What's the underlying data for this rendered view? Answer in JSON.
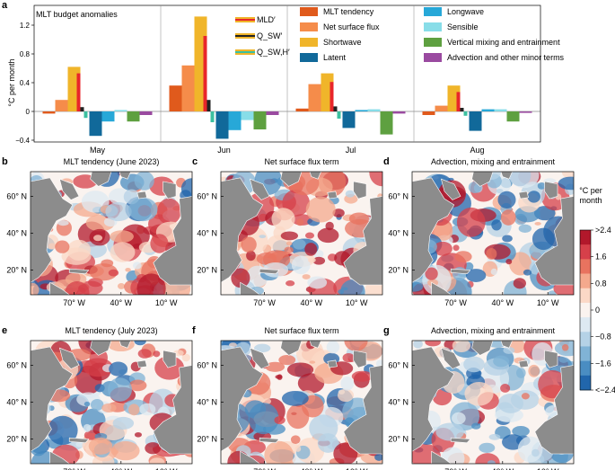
{
  "panel_a": {
    "letter": "a",
    "title": "MLT budget anomalies",
    "ylabel": "°C per month",
    "inset_legend": [
      {
        "label": "MLD′",
        "color": "#e8262a"
      },
      {
        "label": "Q_SW′",
        "color": "#222222"
      },
      {
        "label": "Q_SW,H′",
        "color": "#3cc0a0"
      }
    ]
  },
  "chart_data": {
    "type": "bar",
    "title": "MLT budget anomalies",
    "ylabel": "°C per month",
    "ylim": [
      -0.4,
      1.45
    ],
    "yticks": [
      "−0.4",
      "0",
      "0.4",
      "0.8",
      "1.2"
    ],
    "ytick_values": [
      -0.4,
      0,
      0.4,
      0.8,
      1.2
    ],
    "categories": [
      "May",
      "Jun",
      "Jul",
      "Aug"
    ],
    "series": [
      {
        "name": "MLT tendency",
        "color": "#e05a1c",
        "values": [
          -0.03,
          0.36,
          0.04,
          -0.05
        ]
      },
      {
        "name": "Net surface flux",
        "color": "#f58c4a",
        "values": [
          0.16,
          0.64,
          0.38,
          0.08
        ]
      },
      {
        "name": "Shortwave",
        "color": "#f0b52a",
        "values": [
          0.62,
          1.32,
          0.53,
          0.36
        ]
      },
      {
        "name": "Latent",
        "color": "#11699a",
        "values": [
          -0.34,
          -0.38,
          -0.23,
          -0.27
        ]
      },
      {
        "name": "Longwave",
        "color": "#27a8d8",
        "values": [
          -0.14,
          -0.26,
          0.02,
          0.03
        ]
      },
      {
        "name": "Sensible",
        "color": "#88dde8",
        "values": [
          0.02,
          -0.12,
          0.03,
          0.03
        ]
      },
      {
        "name": "Vertical mixing and entrainment",
        "color": "#5ea040",
        "values": [
          -0.14,
          -0.25,
          -0.32,
          -0.14
        ]
      },
      {
        "name": "Advection and other minor terms",
        "color": "#9a4aa0",
        "values": [
          -0.05,
          -0.05,
          -0.03,
          -0.02
        ]
      }
    ],
    "overlay": {
      "MLD′": [
        0.53,
        1.05,
        0.41,
        0.27
      ],
      "Q_SW′": [
        0.06,
        0.16,
        0.07,
        0.05
      ],
      "Q_SW,H′": [
        -0.09,
        -0.15,
        -0.1,
        -0.06
      ]
    }
  },
  "maps": [
    {
      "letter": "b",
      "title": "MLT tendency (June 2023)",
      "seed": 11
    },
    {
      "letter": "c",
      "title": "Net surface flux term",
      "seed": 23
    },
    {
      "letter": "d",
      "title": "Advection, mixing and entrainment",
      "seed": 37
    },
    {
      "letter": "e",
      "title": "MLT tendency (July 2023)",
      "seed": 53
    },
    {
      "letter": "f",
      "title": "Net surface flux term",
      "seed": 67
    },
    {
      "letter": "g",
      "title": "Advection, mixing and entrainment",
      "seed": 79
    }
  ],
  "map_lat_labels": [
    "60° N",
    "40° N",
    "20° N"
  ],
  "map_lon_labels": [
    "70° W",
    "40° W",
    "10° W"
  ],
  "colorbar": {
    "title_line1": "°C per",
    "title_line2": "month",
    "ticks": [
      ">2.4",
      "1.6",
      "0.8",
      "0",
      "−0.8",
      "−1.6",
      "<−2.4"
    ],
    "colors": [
      "#b2182b",
      "#d6404a",
      "#e8735f",
      "#f4a98d",
      "#fbd8c6",
      "#faf3ef",
      "#dde9f2",
      "#b5d2e6",
      "#80b3d6",
      "#4a8dc2",
      "#2166ac"
    ]
  }
}
